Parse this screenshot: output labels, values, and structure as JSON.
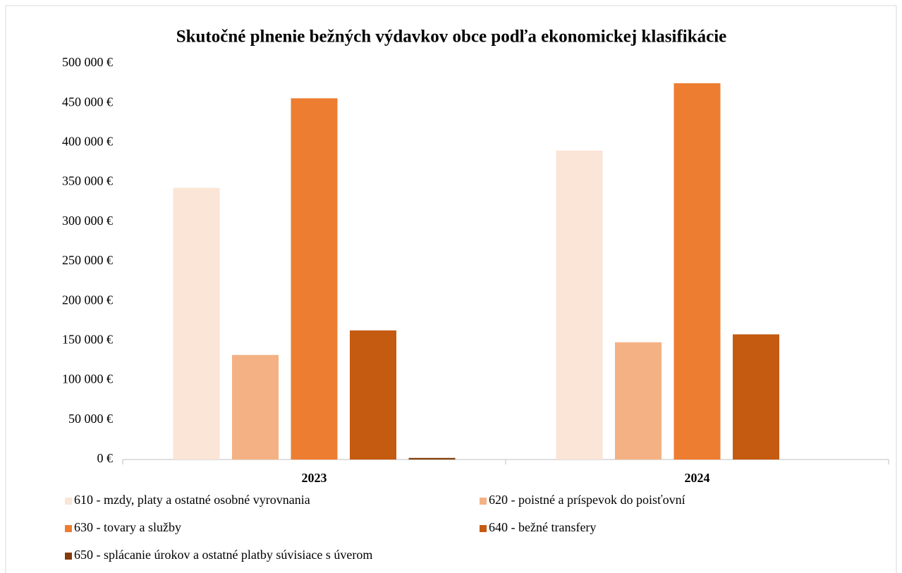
{
  "chart_data": {
    "type": "bar",
    "title": "Skutočné plnenie bežných výdavkov obce podľa ekonomickej klasifikácie",
    "categories": [
      "2023",
      "2024"
    ],
    "series": [
      {
        "name": "610 - mzdy, platy a ostatné osobné vyrovnania",
        "color": "#fbe5d6",
        "values": [
          343000,
          390000
        ]
      },
      {
        "name": "620 - poistné a príspevok do poisťovní",
        "color": "#f4b183",
        "values": [
          132000,
          148000
        ]
      },
      {
        "name": "630 - tovary a služby",
        "color": "#ed7d31",
        "values": [
          456000,
          475000
        ]
      },
      {
        "name": "640 - bežné transfery",
        "color": "#c55a11",
        "values": [
          163000,
          158000
        ]
      },
      {
        "name": "650 - splácanie úrokov a ostatné platby súvisiace s úverom",
        "color": "#843c0c",
        "values": [
          2000,
          0
        ]
      }
    ],
    "ylim": [
      0,
      500000
    ],
    "yticks": [
      {
        "value": 0,
        "label": "0 €"
      },
      {
        "value": 50000,
        "label": "50 000 €"
      },
      {
        "value": 100000,
        "label": "100 000 €"
      },
      {
        "value": 150000,
        "label": "150 000 €"
      },
      {
        "value": 200000,
        "label": "200 000 €"
      },
      {
        "value": 250000,
        "label": "250 000 €"
      },
      {
        "value": 300000,
        "label": "300 000 €"
      },
      {
        "value": 350000,
        "label": "350 000 €"
      },
      {
        "value": 400000,
        "label": "400 000 €"
      },
      {
        "value": 450000,
        "label": "450 000 €"
      },
      {
        "value": 500000,
        "label": "500 000 €"
      }
    ],
    "grid": false,
    "legend": "bottom"
  }
}
